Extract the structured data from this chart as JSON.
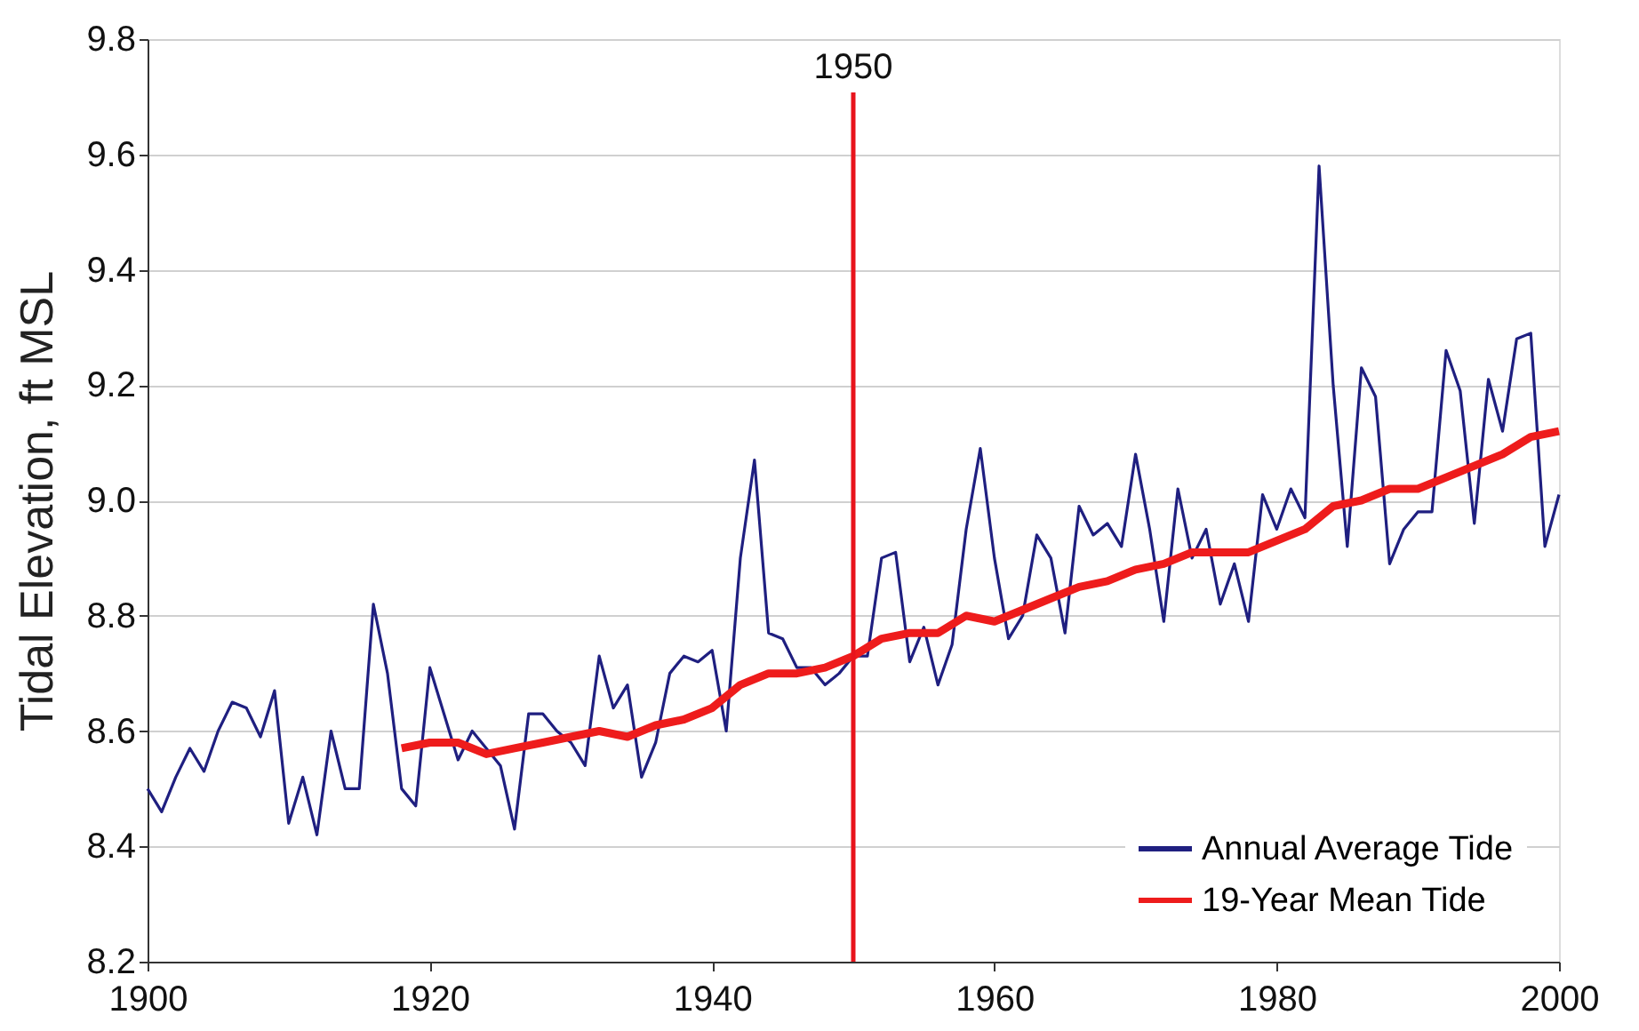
{
  "chart_data": {
    "type": "line",
    "ylabel": "Tidal Elevation, ft MSL",
    "xlim": [
      1900,
      2000
    ],
    "xticks": [
      1900,
      1920,
      1940,
      1960,
      1980,
      2000
    ],
    "ylim": [
      8.2,
      9.8
    ],
    "yticks": [
      {
        "value": 8.2,
        "label": "8.2"
      },
      8.4,
      8.6,
      8.8,
      {
        "value": 9.0,
        "label": "9.0"
      },
      9.2,
      9.4,
      9.6,
      9.8
    ],
    "grid": "y",
    "legend": "bottom right",
    "line_style": "solid",
    "marker": "none",
    "series": [
      {
        "name": "Annual Average Tide",
        "color": "#1f1f80",
        "x": [
          1900,
          1901,
          1902,
          1903,
          1904,
          1905,
          1906,
          1907,
          1908,
          1909,
          1910,
          1911,
          1912,
          1913,
          1914,
          1915,
          1916,
          1917,
          1918,
          1919,
          1920,
          1921,
          1922,
          1923,
          1924,
          1925,
          1926,
          1927,
          1928,
          1929,
          1930,
          1931,
          1932,
          1933,
          1934,
          1935,
          1936,
          1937,
          1938,
          1939,
          1940,
          1941,
          1942,
          1943,
          1944,
          1945,
          1946,
          1947,
          1948,
          1949,
          1950,
          1951,
          1952,
          1953,
          1954,
          1955,
          1956,
          1957,
          1958,
          1959,
          1960,
          1961,
          1962,
          1963,
          1964,
          1965,
          1966,
          1967,
          1968,
          1969,
          1970,
          1971,
          1972,
          1973,
          1974,
          1975,
          1976,
          1977,
          1978,
          1979,
          1980,
          1981,
          1982,
          1983,
          1984,
          1985,
          1986,
          1987,
          1988,
          1989,
          1990,
          1991,
          1992,
          1993,
          1994,
          1995,
          1996,
          1997,
          1998,
          1999,
          2000
        ],
        "values": [
          8.5,
          8.46,
          8.52,
          8.57,
          8.53,
          8.6,
          8.65,
          8.64,
          8.59,
          8.67,
          8.44,
          8.52,
          8.42,
          8.6,
          8.5,
          8.5,
          8.82,
          8.7,
          8.5,
          8.47,
          8.71,
          8.63,
          8.55,
          8.6,
          8.57,
          8.54,
          8.43,
          8.63,
          8.63,
          8.6,
          8.58,
          8.54,
          8.73,
          8.64,
          8.68,
          8.52,
          8.58,
          8.7,
          8.73,
          8.72,
          8.74,
          8.6,
          8.9,
          9.07,
          8.77,
          8.76,
          8.71,
          8.71,
          8.68,
          8.7,
          8.73,
          8.73,
          8.9,
          8.91,
          8.72,
          8.78,
          8.68,
          8.75,
          8.95,
          9.09,
          8.9,
          8.76,
          8.8,
          8.94,
          8.9,
          8.77,
          8.99,
          8.94,
          8.96,
          8.92,
          9.08,
          8.95,
          8.79,
          9.02,
          8.9,
          8.95,
          8.82,
          8.89,
          8.79,
          9.01,
          8.95,
          9.02,
          8.97,
          9.58,
          9.2,
          8.92,
          9.23,
          9.18,
          8.89,
          8.95,
          8.98,
          8.98,
          9.26,
          9.19,
          8.96,
          9.21,
          9.12,
          9.28,
          9.29,
          8.92,
          9.01
        ]
      },
      {
        "name": "19-Year Mean Tide",
        "color": "#ee1c1c",
        "x": [
          1918,
          1920,
          1922,
          1924,
          1926,
          1928,
          1930,
          1932,
          1934,
          1936,
          1938,
          1940,
          1942,
          1944,
          1946,
          1948,
          1950,
          1952,
          1954,
          1956,
          1958,
          1960,
          1962,
          1964,
          1966,
          1968,
          1970,
          1972,
          1974,
          1976,
          1978,
          1980,
          1982,
          1984,
          1986,
          1988,
          1990,
          1992,
          1994,
          1996,
          1998,
          2000
        ],
        "values": [
          8.57,
          8.58,
          8.58,
          8.56,
          8.57,
          8.58,
          8.59,
          8.6,
          8.59,
          8.61,
          8.62,
          8.64,
          8.68,
          8.7,
          8.7,
          8.71,
          8.73,
          8.76,
          8.77,
          8.77,
          8.8,
          8.79,
          8.81,
          8.83,
          8.85,
          8.86,
          8.88,
          8.89,
          8.91,
          8.91,
          8.91,
          8.93,
          8.95,
          8.99,
          9.0,
          9.02,
          9.02,
          9.04,
          9.06,
          9.08,
          9.11,
          9.12
        ]
      }
    ],
    "ref_lines": [
      {
        "axis": "x",
        "value": 1950,
        "label": "1950",
        "color": "#e8141c"
      }
    ]
  }
}
